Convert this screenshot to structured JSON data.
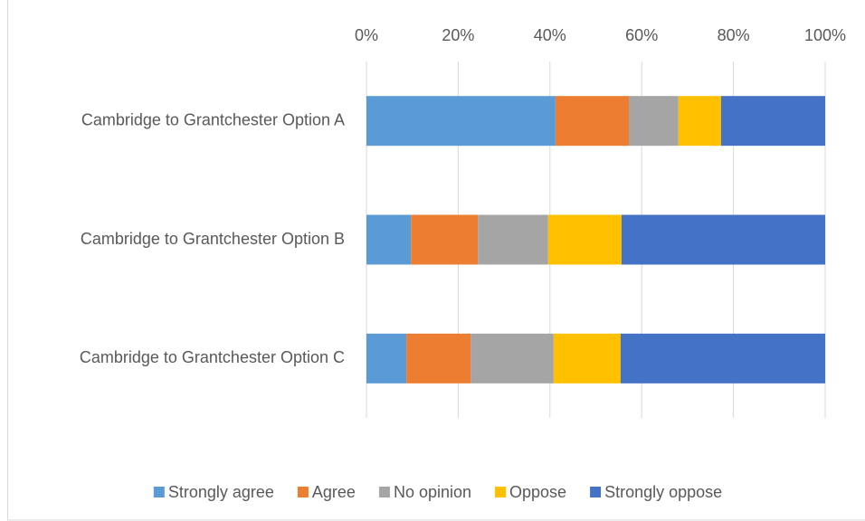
{
  "chart_data": {
    "type": "stacked-bar-horizontal",
    "categories": [
      "Cambridge to Grantchester Option A",
      "Cambridge to Grantchester Option B",
      "Cambridge to Grantchester Option C"
    ],
    "series": [
      {
        "name": "Strongly agree",
        "color": "#5b9bd5",
        "values": [
          41.2,
          9.7,
          8.7
        ]
      },
      {
        "name": "Agree",
        "color": "#ed7d31",
        "values": [
          16.0,
          14.6,
          14.0
        ]
      },
      {
        "name": "No opinion",
        "color": "#a5a5a5",
        "values": [
          10.8,
          15.3,
          18.1
        ]
      },
      {
        "name": "Oppose",
        "color": "#ffc000",
        "values": [
          9.3,
          16.0,
          14.6
        ]
      },
      {
        "name": "Strongly oppose",
        "color": "#4472c4",
        "values": [
          22.7,
          44.4,
          44.6
        ]
      }
    ],
    "xlim": [
      0,
      100
    ],
    "xticks": [
      {
        "value": 0,
        "label": "0%"
      },
      {
        "value": 20,
        "label": "20%"
      },
      {
        "value": 40,
        "label": "40%"
      },
      {
        "value": 60,
        "label": "60%"
      },
      {
        "value": 80,
        "label": "80%"
      },
      {
        "value": 100,
        "label": "100%"
      }
    ],
    "grid": true,
    "legend": "bottom"
  }
}
